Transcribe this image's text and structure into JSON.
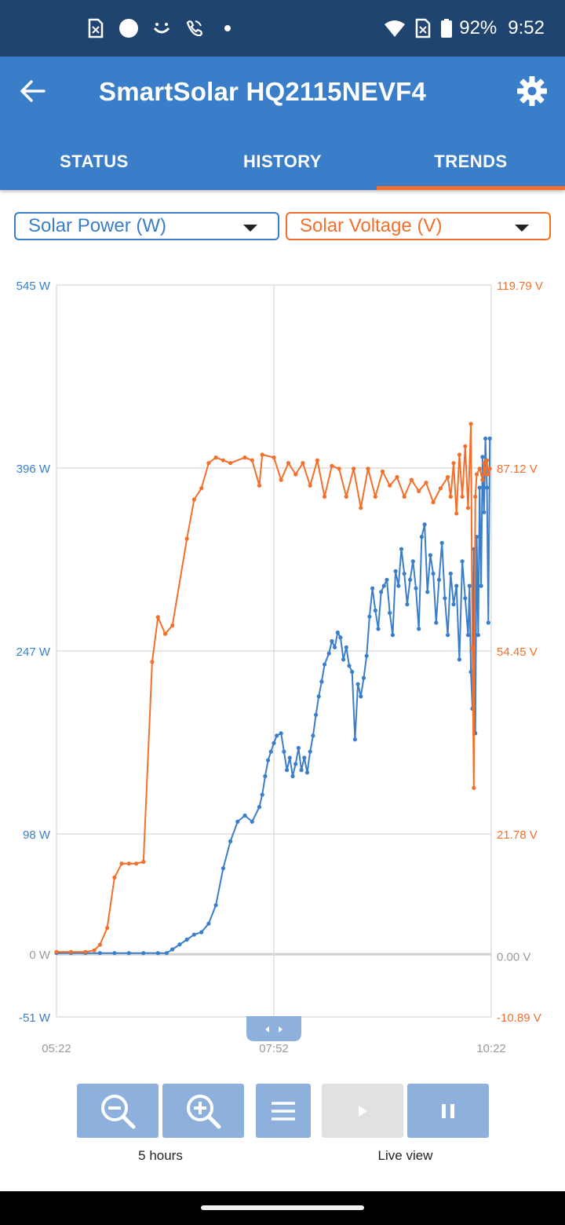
{
  "status_bar": {
    "battery": "92%",
    "time": "9:52"
  },
  "app_bar": {
    "title": "SmartSolar HQ2115NEVF4",
    "back_icon": "arrow-left-icon",
    "settings_icon": "gear-icon"
  },
  "tabs": [
    {
      "label": "STATUS",
      "active": false
    },
    {
      "label": "HISTORY",
      "active": false
    },
    {
      "label": "TRENDS",
      "active": true
    }
  ],
  "selectors": {
    "left": {
      "value": "Solar Power (W)",
      "color": "#3a7ec9"
    },
    "right": {
      "value": "Solar Voltage (V)",
      "color": "#f36f2a"
    }
  },
  "chart_data": {
    "type": "line",
    "x_ticks": [
      "05:22",
      "07:52",
      "10:22"
    ],
    "x_range_minutes": [
      0,
      300
    ],
    "left_axis": {
      "ticks": [
        "545 W",
        "396 W",
        "247 W",
        "98 W",
        "0 W",
        "-51 W"
      ],
      "tick_values": [
        545,
        396,
        247,
        98,
        0,
        -51
      ],
      "range": [
        -51,
        545
      ],
      "color": "#3a7ec9"
    },
    "right_axis": {
      "ticks": [
        "119.79 V",
        "87.12 V",
        "54.45 V",
        "21.78 V",
        "0.00 V",
        "-10.89 V"
      ],
      "tick_values": [
        119.79,
        87.12,
        54.45,
        21.78,
        0.0,
        -10.89
      ],
      "range": [
        -10.89,
        119.79
      ],
      "color": "#f36f2a"
    },
    "grid": true,
    "series": [
      {
        "name": "Solar Power (W)",
        "axis": "left",
        "color": "#3a7ec9",
        "points": [
          [
            0,
            1
          ],
          [
            10,
            1
          ],
          [
            20,
            1
          ],
          [
            30,
            1
          ],
          [
            40,
            1
          ],
          [
            50,
            1
          ],
          [
            60,
            1
          ],
          [
            70,
            1
          ],
          [
            76,
            1
          ],
          [
            80,
            4
          ],
          [
            85,
            8
          ],
          [
            90,
            12
          ],
          [
            95,
            16
          ],
          [
            100,
            18
          ],
          [
            105,
            25
          ],
          [
            110,
            40
          ],
          [
            115,
            70
          ],
          [
            120,
            92
          ],
          [
            125,
            108
          ],
          [
            130,
            113
          ],
          [
            135,
            108
          ],
          [
            140,
            120
          ],
          [
            142,
            130
          ],
          [
            144,
            145
          ],
          [
            146,
            158
          ],
          [
            148,
            165
          ],
          [
            150,
            172
          ],
          [
            152,
            178
          ],
          [
            155,
            180
          ],
          [
            157,
            165
          ],
          [
            159,
            150
          ],
          [
            161,
            160
          ],
          [
            163,
            145
          ],
          [
            165,
            155
          ],
          [
            167,
            168
          ],
          [
            169,
            150
          ],
          [
            171,
            160
          ],
          [
            173,
            148
          ],
          [
            175,
            165
          ],
          [
            177,
            178
          ],
          [
            179,
            195
          ],
          [
            181,
            210
          ],
          [
            183,
            222
          ],
          [
            185,
            236
          ],
          [
            188,
            245
          ],
          [
            190,
            255
          ],
          [
            192,
            250
          ],
          [
            194,
            262
          ],
          [
            196,
            258
          ],
          [
            198,
            240
          ],
          [
            200,
            250
          ],
          [
            202,
            235
          ],
          [
            204,
            230
          ],
          [
            206,
            175
          ],
          [
            208,
            220
          ],
          [
            210,
            210
          ],
          [
            212,
            225
          ],
          [
            214,
            243
          ],
          [
            216,
            275
          ],
          [
            218,
            298
          ],
          [
            220,
            280
          ],
          [
            222,
            265
          ],
          [
            224,
            295
          ],
          [
            226,
            300
          ],
          [
            228,
            305
          ],
          [
            230,
            278
          ],
          [
            232,
            260
          ],
          [
            234,
            312
          ],
          [
            236,
            300
          ],
          [
            238,
            330
          ],
          [
            240,
            310
          ],
          [
            242,
            285
          ],
          [
            244,
            305
          ],
          [
            246,
            320
          ],
          [
            248,
            298
          ],
          [
            250,
            265
          ],
          [
            252,
            340
          ],
          [
            254,
            350
          ],
          [
            256,
            295
          ],
          [
            258,
            325
          ],
          [
            260,
            310
          ],
          [
            262,
            270
          ],
          [
            264,
            305
          ],
          [
            266,
            335
          ],
          [
            268,
            290
          ],
          [
            270,
            260
          ],
          [
            272,
            310
          ],
          [
            274,
            285
          ],
          [
            276,
            300
          ],
          [
            278,
            240
          ],
          [
            280,
            320
          ],
          [
            282,
            290
          ],
          [
            284,
            260
          ],
          [
            285,
            300
          ],
          [
            286,
            230
          ],
          [
            287,
            200
          ],
          [
            288,
            330
          ],
          [
            289,
            180
          ],
          [
            290,
            340
          ],
          [
            291,
            260
          ],
          [
            292,
            380
          ],
          [
            293,
            300
          ],
          [
            294,
            405
          ],
          [
            295,
            360
          ],
          [
            296,
            420
          ],
          [
            297,
            380
          ],
          [
            298,
            270
          ],
          [
            299,
            420
          ]
        ]
      },
      {
        "name": "Solar Voltage (V)",
        "axis": "right",
        "color": "#f36f2a",
        "points": [
          [
            0,
            0.7
          ],
          [
            10,
            0.7
          ],
          [
            20,
            0.7
          ],
          [
            26,
            1.0
          ],
          [
            30,
            2.0
          ],
          [
            35,
            5.0
          ],
          [
            40,
            14.0
          ],
          [
            45,
            16.5
          ],
          [
            50,
            16.5
          ],
          [
            55,
            16.5
          ],
          [
            60,
            16.8
          ],
          [
            66,
            52.5
          ],
          [
            70,
            60.5
          ],
          [
            75,
            57.5
          ],
          [
            80,
            59.0
          ],
          [
            90,
            74.5
          ],
          [
            95,
            81.5
          ],
          [
            100,
            83.5
          ],
          [
            105,
            88.0
          ],
          [
            110,
            89.0
          ],
          [
            115,
            88.5
          ],
          [
            120,
            88.0
          ],
          [
            130,
            89.0
          ],
          [
            135,
            88.5
          ],
          [
            140,
            84.0
          ],
          [
            142,
            89.5
          ],
          [
            150,
            89.0
          ],
          [
            155,
            85.0
          ],
          [
            160,
            88.0
          ],
          [
            165,
            86.0
          ],
          [
            170,
            88.0
          ],
          [
            175,
            84.0
          ],
          [
            180,
            88.5
          ],
          [
            185,
            82.0
          ],
          [
            190,
            87.5
          ],
          [
            195,
            87.0
          ],
          [
            200,
            82.0
          ],
          [
            205,
            87.0
          ],
          [
            210,
            80.0
          ],
          [
            215,
            87.0
          ],
          [
            220,
            82.0
          ],
          [
            225,
            86.5
          ],
          [
            230,
            84.0
          ],
          [
            235,
            85.5
          ],
          [
            240,
            82.0
          ],
          [
            245,
            85.0
          ],
          [
            250,
            83.0
          ],
          [
            255,
            84.5
          ],
          [
            260,
            81.0
          ],
          [
            265,
            83.5
          ],
          [
            270,
            85.5
          ],
          [
            272,
            82.0
          ],
          [
            274,
            88.0
          ],
          [
            276,
            79.0
          ],
          [
            278,
            89.5
          ],
          [
            280,
            82.0
          ],
          [
            282,
            91.0
          ],
          [
            284,
            80.0
          ],
          [
            286,
            95.0
          ],
          [
            287,
            55.0
          ],
          [
            288,
            30.0
          ],
          [
            289,
            82.0
          ],
          [
            290,
            86.0
          ],
          [
            292,
            87.0
          ],
          [
            294,
            85.0
          ],
          [
            295,
            88.0
          ],
          [
            296,
            86.0
          ],
          [
            297,
            88.5
          ],
          [
            298,
            86.0
          ],
          [
            299,
            87.0
          ]
        ]
      }
    ]
  },
  "controls": {
    "zoom_out_icon": "zoom-out-icon",
    "zoom_in_icon": "zoom-in-icon",
    "menu_icon": "menu-icon",
    "play_icon": "play-icon",
    "pause_icon": "pause-icon",
    "zoom_label": "5 hours",
    "live_label": "Live view"
  }
}
